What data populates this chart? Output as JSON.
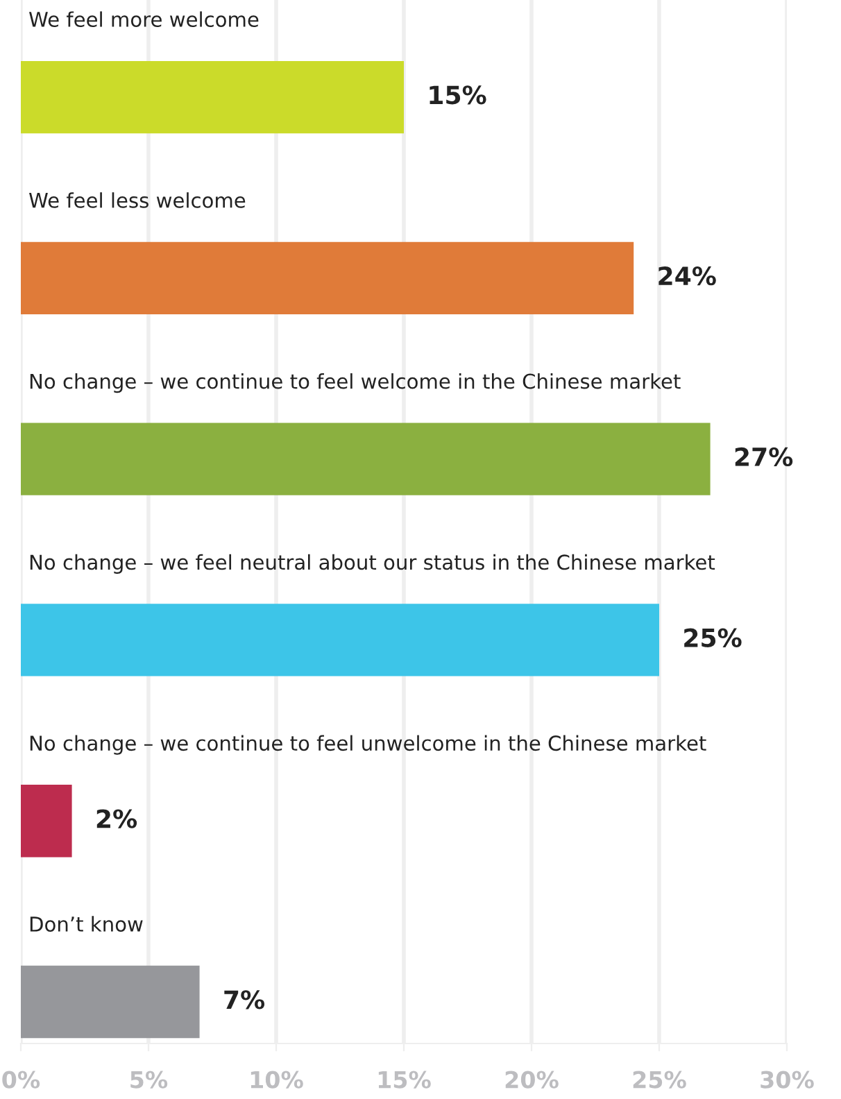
{
  "chart_data": {
    "type": "bar",
    "orientation": "horizontal",
    "categories": [
      "We feel more welcome",
      "We feel less welcome",
      "No change – we continue to feel welcome in the Chinese market",
      "No change – we feel neutral about our status in the Chinese market",
      "No change – we continue to feel unwelcome in the Chinese market",
      "Don’t know"
    ],
    "values": [
      15,
      24,
      27,
      25,
      2,
      7
    ],
    "colors": [
      "#cbdb2a",
      "#e07b39",
      "#8bb040",
      "#3dc5e8",
      "#bd2c4e",
      "#96979b"
    ],
    "value_labels": [
      "15%",
      "24%",
      "27%",
      "25%",
      "2%",
      "7%"
    ],
    "xlim": [
      0,
      30
    ],
    "xticks": [
      {
        "value": 0,
        "label": "0%"
      },
      {
        "value": 5,
        "label": "5%"
      },
      {
        "value": 10,
        "label": "10%"
      },
      {
        "value": 15,
        "label": "15%"
      },
      {
        "value": 20,
        "label": "20%"
      },
      {
        "value": 25,
        "label": "25%"
      },
      {
        "value": 30,
        "label": "30%"
      }
    ],
    "grid": "x"
  }
}
